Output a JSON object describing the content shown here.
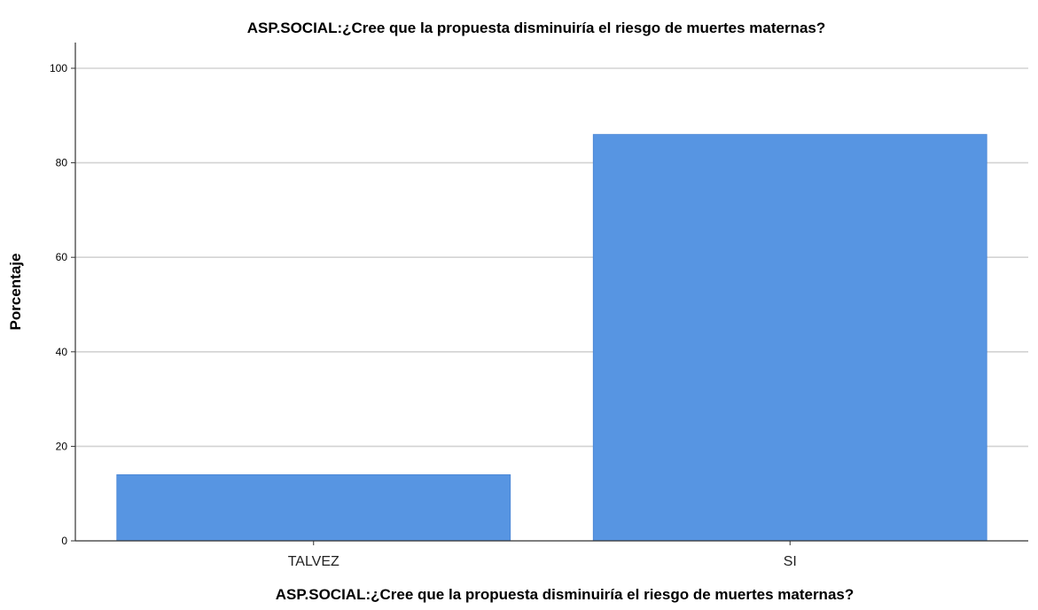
{
  "chart_data": {
    "type": "bar",
    "title": "ASP.SOCIAL:¿Cree que la propuesta disminuiría el riesgo de muertes maternas?",
    "xlabel": "ASP.SOCIAL:¿Cree que la propuesta disminuiría el riesgo de muertes maternas?",
    "ylabel": "Porcentaje",
    "categories": [
      "TALVEZ",
      "SI"
    ],
    "values": [
      14,
      86
    ],
    "ylim": [
      0,
      100
    ],
    "yticks": [
      "0",
      "20",
      "40",
      "60",
      "80",
      "100"
    ],
    "grid": true,
    "legend": "none",
    "bar_color": "#5795e2"
  }
}
